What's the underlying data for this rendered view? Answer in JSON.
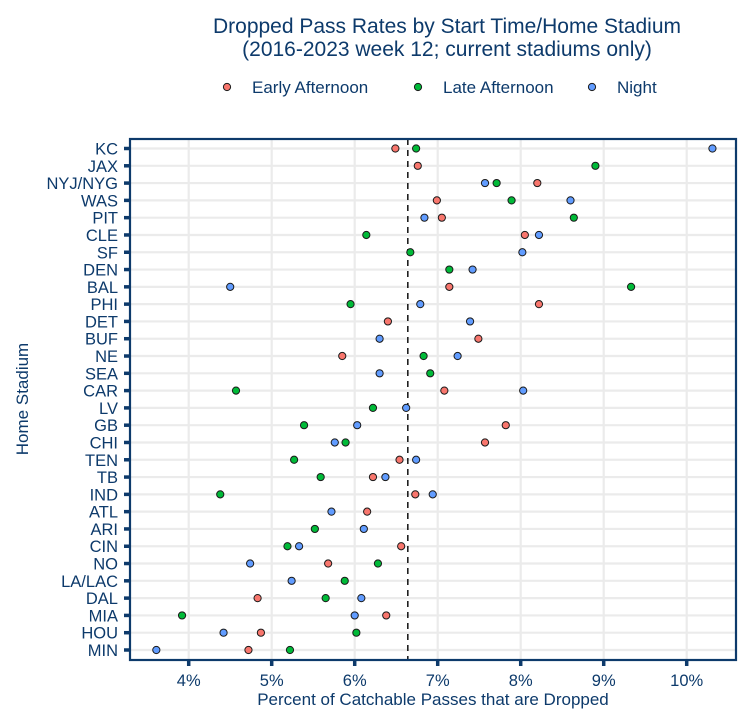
{
  "chart_data": {
    "type": "scatter",
    "title": "Dropped Pass Rates by Start Time/Home Stadium",
    "subtitle": "(2016-2023 week 12; current stadiums only)",
    "xlabel": "Percent of Catchable Passes that are Dropped",
    "ylabel": "Home Stadium",
    "xlim": [
      3.3,
      10.6
    ],
    "x_ticks": [
      4,
      5,
      6,
      7,
      8,
      9,
      10
    ],
    "x_tick_labels": [
      "4%",
      "5%",
      "6%",
      "7%",
      "8%",
      "9%",
      "10%"
    ],
    "reference_line": {
      "x": 6.64,
      "style": "dashed"
    },
    "grid": true,
    "legend_position": "top",
    "categories": [
      "KC",
      "JAX",
      "NYJ/NYG",
      "WAS",
      "PIT",
      "CLE",
      "SF",
      "DEN",
      "BAL",
      "PHI",
      "DET",
      "BUF",
      "NE",
      "SEA",
      "CAR",
      "LV",
      "GB",
      "CHI",
      "TEN",
      "TB",
      "IND",
      "ATL",
      "ARI",
      "CIN",
      "NO",
      "LA/LAC",
      "DAL",
      "MIA",
      "HOU",
      "MIN"
    ],
    "series": [
      {
        "name": "Early Afternoon",
        "color": "#F8766D",
        "values": [
          6.49,
          6.76,
          8.2,
          6.99,
          7.05,
          8.05,
          null,
          null,
          7.14,
          8.22,
          6.4,
          7.49,
          5.85,
          null,
          7.08,
          null,
          7.82,
          7.57,
          6.54,
          6.22,
          6.73,
          6.15,
          null,
          6.56,
          5.68,
          null,
          4.83,
          6.38,
          4.87,
          4.72
        ]
      },
      {
        "name": "Late Afternoon",
        "color": "#00BA38",
        "values": [
          6.74,
          8.9,
          7.71,
          7.89,
          8.64,
          6.14,
          6.67,
          7.14,
          9.33,
          5.95,
          null,
          null,
          6.83,
          6.91,
          4.57,
          6.22,
          5.39,
          5.89,
          5.27,
          5.59,
          4.38,
          null,
          5.52,
          5.19,
          6.28,
          5.88,
          5.65,
          3.92,
          6.02,
          5.22
        ]
      },
      {
        "name": "Night",
        "color": "#619CFF",
        "values": [
          10.31,
          null,
          7.57,
          8.6,
          6.84,
          8.22,
          8.02,
          7.42,
          4.5,
          6.79,
          7.39,
          6.3,
          7.24,
          6.3,
          8.03,
          6.62,
          6.03,
          5.76,
          6.74,
          6.37,
          6.94,
          5.72,
          6.11,
          5.33,
          4.74,
          5.24,
          6.08,
          6.0,
          4.42,
          3.61
        ]
      }
    ]
  }
}
